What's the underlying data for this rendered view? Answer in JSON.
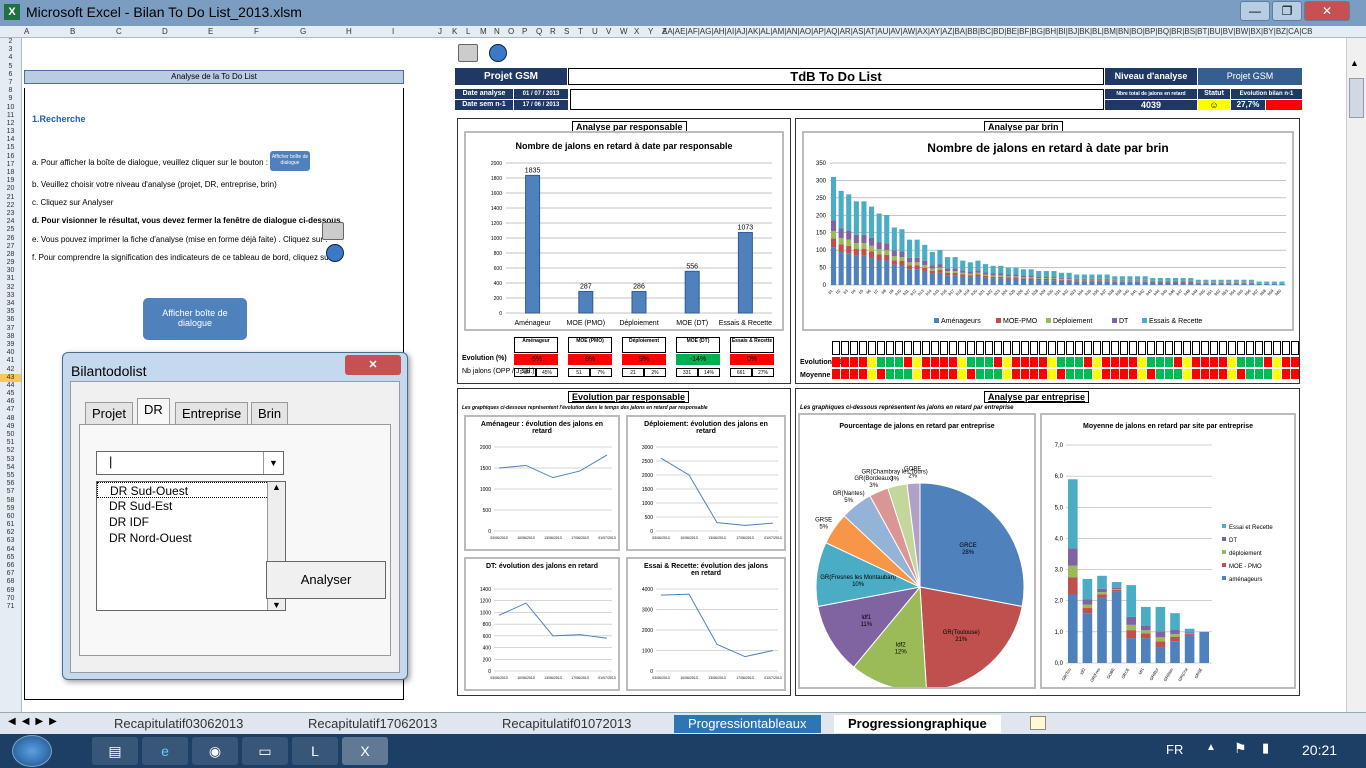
{
  "window": {
    "title": "Microsoft Excel - Bilan To Do List_2013.xlsm",
    "min": "—",
    "max": "❐",
    "close": "✕"
  },
  "columns": [
    "A",
    "B",
    "C",
    "D",
    "E",
    "F",
    "G",
    "H",
    "I",
    "J",
    "K",
    "L",
    "M",
    "N",
    "O",
    "P",
    "Q",
    "R",
    "S",
    "T",
    "U",
    "V",
    "W",
    "X",
    "Y",
    "Z",
    "AA|AE|AF|AG|AH|AI|AJ|AK|AL|AM|AN|AO|AP|AQ|AR|AS|AT|AU|AV|AW|AX|AY|AZ|BA|BB|BC|BD|BE|BF|BG|BH|BI|BJ|BK|BL|BM|BN|BO|BP|BQ|BR|BS|BT|BU|BV|BW|BX|BY|BZ|CA|CB"
  ],
  "rows": [
    "2",
    "3",
    "4",
    "5",
    "6",
    "7",
    "8",
    "9",
    "10",
    "11",
    "12",
    "13",
    "14",
    "15",
    "16",
    "17",
    "18",
    "19",
    "20",
    "21",
    "22",
    "23",
    "24",
    "25",
    "26",
    "27",
    "28",
    "29",
    "30",
    "31",
    "32",
    "33",
    "34",
    "35",
    "36",
    "37",
    "38",
    "39",
    "40",
    "41",
    "42",
    "43",
    "44",
    "45",
    "46",
    "47",
    "48",
    "49",
    "50",
    "51",
    "52",
    "53",
    "54",
    "55",
    "56",
    "57",
    "58",
    "59",
    "60",
    "61",
    "62",
    "63",
    "64",
    "65",
    "66",
    "67",
    "68",
    "69",
    "70",
    "71"
  ],
  "selected_row": "43",
  "left": {
    "header": "Analyse de la To Do List",
    "section": "1.Recherche",
    "steps": [
      "a. Pour afficher la boîte de dialogue, veuillez cliquer sur le bouton :",
      "b. Veuillez choisir votre niveau d'analyse (projet, DR, entreprise, brin)",
      "c. Cliquez sur Analyser",
      "d. Pour visionner le résultat, vous devez fermer la fenêtre de dialogue ci-dessous",
      "e. Vous pouvez imprimer la fiche d'analyse (mise en forme déjà faite) . Cliquez sur :",
      "f. Pour comprendre la signification des indicateurs de ce tableau de bord, cliquez sur:"
    ],
    "mini_button": "Afficher boîte de dialogue",
    "big_button": "Afficher boîte de dialogue"
  },
  "dialog": {
    "title": "Bilantodolist",
    "close": "✕",
    "tabs": [
      "Projet",
      "DR",
      "Entreprise",
      "Brin"
    ],
    "active_tab": "DR",
    "combo_value": "|",
    "list": [
      "DR Sud-Ouest",
      "DR Sud-Est",
      "DR IDF",
      "DR Nord-Ouest"
    ],
    "analyse_button": "Analyser"
  },
  "dashboard": {
    "projet_label": "Projet GSM",
    "title": "TdB To Do List",
    "niveau_label": "Niveau d'analyse",
    "niveau_value": "Projet GSM",
    "date_analyse_label": "Date analyse",
    "date_analyse": "01 / 07 / 2013",
    "date_sem_label": "Date sem n-1",
    "date_sem": "17 / 06 / 2013",
    "total_label": "Nbre total de jalons en retard",
    "total": "4039",
    "statut_label": "Statut",
    "statut_icon": "☺",
    "evol_label": "Evolution bilan n-1",
    "evol": "27,7%",
    "colors": {
      "navy": "#1f3864",
      "red": "#ff0000",
      "green": "#00b050",
      "yellow": "#ffff00",
      "bar": "#4f81bd"
    }
  },
  "resp": {
    "caption": "Analyse par responsable",
    "chart_title": "Nombre de jalons en retard à date par responsable",
    "table": {
      "row1": "Evolution (%)",
      "row2": "Nb jalons (OPP / J sal.)",
      "cols": [
        {
          "h": "Aménageur",
          "evol": "-5%",
          "c": "red",
          "a": "1437",
          "b": "45%"
        },
        {
          "h": "MOE (PMO)",
          "evol": "8%",
          "c": "red",
          "a": "51",
          "b": "7%"
        },
        {
          "h": "Déploiement",
          "evol": "9%",
          "c": "red",
          "a": "21",
          "b": "2%"
        },
        {
          "h": "MOE (DT)",
          "evol": "-14%",
          "c": "green",
          "a": "331",
          "b": "14%"
        },
        {
          "h": "Essais & Recette",
          "evol": "0%",
          "c": "red",
          "a": "661",
          "b": "27%"
        }
      ]
    }
  },
  "brin": {
    "caption": "Analyse par brin",
    "chart_title": "Nombre de jalons en retard à date par brin",
    "row1": "Evolution (%)",
    "row2": "Moyenne / s",
    "legend": [
      "Aménageurs",
      "MOE-PMO",
      "Déploiement",
      "DT",
      "Essais & Recette"
    ]
  },
  "evolution": {
    "caption": "Evolution par responsable",
    "subtitle": "Les graphiques ci-dessous représentent l'évolution dans le temps des jalons en retard par responsable",
    "charts": [
      {
        "title": "Aménageur : évolution des jalons en retard"
      },
      {
        "title": "Déploiement: évolution des jalons en retard"
      },
      {
        "title": "DT: évolution des jalons en retard"
      },
      {
        "title": "Essai & Recette: évolution des jalons en retard"
      }
    ]
  },
  "entreprise": {
    "caption": "Analyse par entreprise",
    "subtitle": "Les graphiques ci-dessous représentent les jalons en retard par entreprise",
    "pie_title": "Pourcentage de jalons en retard par entreprise",
    "avg_title": "Moyenne de jalons en retard par site par entreprise",
    "avg_legend": [
      "Essai et Recette",
      "DT",
      "déploiement",
      "MOE - PMO",
      "aménageurs"
    ]
  },
  "sheets": [
    "Recapitulatif03062013",
    "Recapitulatif17062013",
    "Recapitulatif01072013",
    "Progressiontableaux",
    "Progressiongraphique"
  ],
  "active_sheet": "Progressiongraphique",
  "taskbar": {
    "lang": "FR",
    "time": "20:21"
  },
  "chart_data": [
    {
      "type": "bar",
      "title": "Nombre de jalons en retard à date par responsable",
      "categories": [
        "Aménageur",
        "MOE (PMO)",
        "Déploiement",
        "MOE (DT)",
        "Essais & Recette"
      ],
      "values": [
        1835,
        287,
        286,
        556,
        1073
      ],
      "ylim": [
        0,
        2000
      ],
      "yticks": [
        0,
        200,
        400,
        600,
        800,
        1000,
        1200,
        1400,
        1600,
        1800,
        2000
      ],
      "xlabel": "",
      "ylabel": ""
    },
    {
      "type": "bar",
      "title": "Nombre de jalons en retard à date par brin",
      "stacked": true,
      "categories": [
        "b1",
        "b2",
        "b3",
        "b4",
        "b5",
        "b6",
        "b7",
        "b8",
        "b9",
        "b10",
        "b11",
        "b12",
        "b13",
        "b14",
        "b15",
        "b16",
        "b17",
        "b18",
        "b19",
        "b20",
        "b21",
        "b22",
        "b23",
        "b24",
        "b25",
        "b26",
        "b27",
        "b28",
        "b29",
        "b30",
        "b31",
        "b32",
        "b33",
        "b34",
        "b35",
        "b36",
        "b37",
        "b38",
        "b39",
        "b40",
        "b41",
        "b42",
        "b43",
        "b44",
        "b45",
        "b46",
        "b47",
        "b48",
        "b49",
        "b50",
        "b51",
        "b52",
        "b53",
        "b54",
        "b55",
        "b56",
        "b57",
        "b58",
        "b59",
        "b60"
      ],
      "totals": [
        310,
        270,
        260,
        240,
        240,
        225,
        205,
        200,
        165,
        160,
        130,
        130,
        115,
        95,
        100,
        80,
        80,
        70,
        65,
        70,
        60,
        55,
        55,
        50,
        50,
        45,
        45,
        40,
        40,
        40,
        35,
        35,
        30,
        30,
        30,
        30,
        30,
        25,
        25,
        25,
        25,
        25,
        20,
        20,
        20,
        20,
        20,
        20,
        15,
        15,
        15,
        15,
        15,
        15,
        15,
        15,
        10,
        10,
        10,
        10
      ],
      "ylim": [
        0,
        350
      ],
      "yticks": [
        0,
        50,
        100,
        150,
        200,
        250,
        300,
        350
      ],
      "series": [
        {
          "name": "Aménageurs"
        },
        {
          "name": "MOE-PMO"
        },
        {
          "name": "Déploiement"
        },
        {
          "name": "DT"
        },
        {
          "name": "Essais & Recette"
        }
      ]
    },
    {
      "type": "line",
      "title": "Aménageur : évolution des jalons en retard",
      "x": [
        "03/06/2013",
        "10/06/2013",
        "13/06/2013",
        "17/06/2013",
        "01/07/2013"
      ],
      "values": [
        1500,
        1560,
        1270,
        1430,
        1810
      ],
      "ylim": [
        0,
        2000
      ],
      "yticks": [
        0,
        500,
        1000,
        1500,
        2000
      ]
    },
    {
      "type": "line",
      "title": "Déploiement: évolution des jalons en retard",
      "x": [
        "03/06/2013",
        "10/06/2013",
        "13/06/2013",
        "17/06/2013",
        "01/07/2013"
      ],
      "values": [
        2600,
        2000,
        300,
        200,
        280
      ],
      "ylim": [
        0,
        3000
      ],
      "yticks": [
        0,
        500,
        1000,
        1500,
        2000,
        2500,
        3000
      ]
    },
    {
      "type": "line",
      "title": "DT: évolution des jalons en retard",
      "x": [
        "03/06/2013",
        "10/06/2013",
        "13/06/2013",
        "17/06/2013",
        "01/07/2013"
      ],
      "values": [
        950,
        1160,
        600,
        620,
        560
      ],
      "ylim": [
        0,
        1400
      ],
      "yticks": [
        0,
        200,
        400,
        600,
        800,
        1000,
        1200,
        1400
      ]
    },
    {
      "type": "line",
      "title": "Essai & Recette: évolution des jalons en retard",
      "x": [
        "03/06/2013",
        "10/06/2013",
        "13/06/2013",
        "17/06/2013",
        "01/07/2013"
      ],
      "values": [
        3700,
        3750,
        1300,
        700,
        1000
      ],
      "ylim": [
        0,
        4000
      ],
      "yticks": [
        0,
        1000,
        2000,
        3000,
        4000
      ]
    },
    {
      "type": "pie",
      "title": "Pourcentage de jalons en retard par entreprise",
      "slices": [
        {
          "label": "GRCE",
          "value": 28,
          "color": "#4f81bd"
        },
        {
          "label": "GR(Toulouse)",
          "value": 21,
          "color": "#c0504d"
        },
        {
          "label": "ldf2",
          "value": 12,
          "color": "#9bbb59"
        },
        {
          "label": "ldf1",
          "value": 11,
          "color": "#8064a2"
        },
        {
          "label": "GR(Fresnes les Montauban)",
          "value": 10,
          "color": "#4bacc6"
        },
        {
          "label": "GRSE",
          "value": 5,
          "color": "#f79646"
        },
        {
          "label": "GR(Nantes)",
          "value": 5,
          "color": "#95b3d7"
        },
        {
          "label": "GR(Bordeaux)",
          "value": 3,
          "color": "#d99694"
        },
        {
          "label": "GR(Chambray les Tours)",
          "value": 3,
          "color": "#c3d69b"
        },
        {
          "label": "GOBE",
          "value": 2,
          "color": "#b2a1c7"
        }
      ]
    },
    {
      "type": "bar",
      "title": "Moyenne de jalons en retard par site par entreprise",
      "stacked": true,
      "categories": [
        "GR(Tou",
        "ldf2",
        "GR(Fres",
        "GOBE",
        "GRCE",
        "ldf1",
        "GR(Bor",
        "GR(Nan",
        "GR(Cha",
        "GRSE"
      ],
      "totals": [
        5.9,
        2.7,
        2.8,
        2.6,
        2.5,
        1.8,
        1.8,
        1.6,
        1.1,
        1.0
      ],
      "bottom": [
        2.2,
        1.6,
        2.1,
        2.3,
        0.8,
        0.8,
        0.5,
        0.7,
        0.9,
        1.0
      ],
      "ylim": [
        0,
        7
      ],
      "yticks": [
        0,
        1,
        2,
        3,
        4,
        5,
        6,
        7
      ],
      "series": [
        {
          "name": "Essai et Recette"
        },
        {
          "name": "DT"
        },
        {
          "name": "déploiement"
        },
        {
          "name": "MOE - PMO"
        },
        {
          "name": "aménageurs"
        }
      ]
    }
  ]
}
